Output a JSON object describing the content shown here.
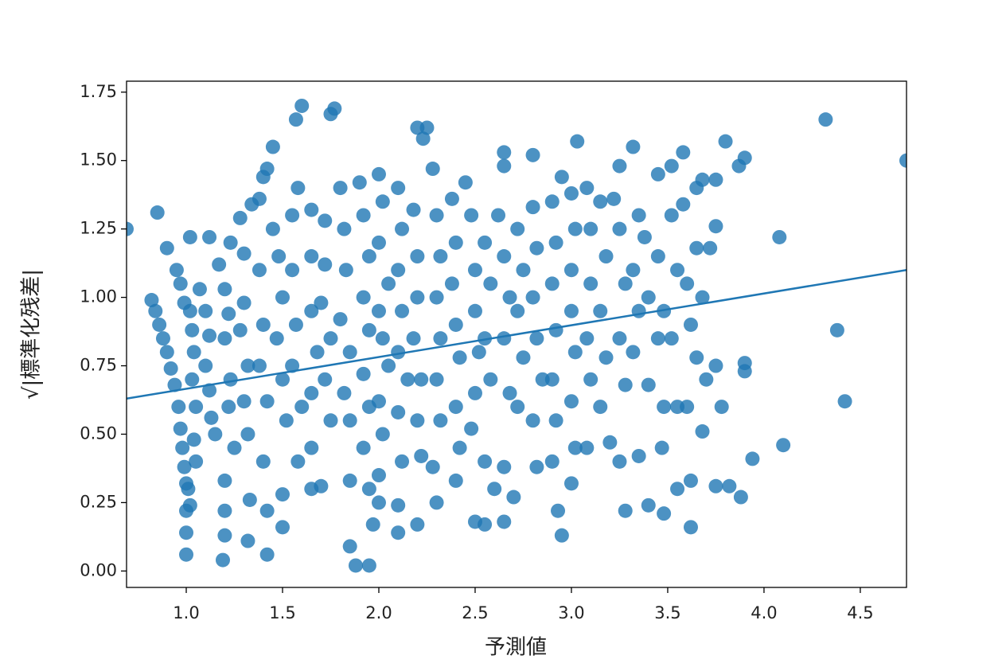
{
  "chart_data": {
    "type": "scatter",
    "xlabel": "予測値",
    "ylabel": "√|標準化残差|",
    "color": "#1f77b4",
    "xlim": [
      0.69,
      4.74
    ],
    "ylim": [
      -0.06,
      1.79
    ],
    "xticks": [
      {
        "value": 1,
        "label": "1.0"
      },
      1.5,
      {
        "value": 2,
        "label": "2.0"
      },
      2.5,
      {
        "value": 3,
        "label": "3.0"
      },
      3.5,
      {
        "value": 4,
        "label": "4.0"
      },
      4.5
    ],
    "yticks": [
      {
        "value": 0,
        "label": "0.00"
      },
      0.25,
      {
        "value": 0.5,
        "label": "0.50"
      },
      0.75,
      {
        "value": 1,
        "label": "1.00"
      },
      1.25,
      {
        "value": 1.5,
        "label": "1.50"
      },
      1.75
    ],
    "x": [
      0.82,
      0.84,
      0.86,
      0.88,
      0.9,
      0.92,
      0.94,
      0.96,
      0.97,
      0.98,
      0.99,
      1.0,
      1.01,
      1.0,
      1.0,
      1.0,
      0.99,
      1.02,
      1.03,
      1.04,
      1.03,
      1.05,
      1.04,
      1.05,
      1.02,
      0.9,
      0.95,
      0.97,
      0.69,
      0.85,
      1.02,
      1.07,
      1.1,
      1.12,
      1.1,
      1.12,
      1.13,
      1.15,
      1.12,
      1.17,
      1.2,
      1.22,
      1.2,
      1.23,
      1.22,
      1.25,
      1.2,
      1.2,
      1.2,
      1.19,
      1.23,
      1.28,
      1.3,
      1.3,
      1.28,
      1.32,
      1.3,
      1.32,
      1.33,
      1.32,
      1.34,
      1.38,
      1.4,
      1.42,
      1.45,
      1.38,
      1.4,
      1.38,
      1.42,
      1.4,
      1.42,
      1.42,
      1.45,
      1.48,
      1.5,
      1.47,
      1.5,
      1.52,
      1.5,
      1.5,
      1.55,
      1.58,
      1.55,
      1.57,
      1.55,
      1.6,
      1.58,
      1.57,
      1.6,
      1.65,
      1.65,
      1.65,
      1.68,
      1.65,
      1.65,
      1.65,
      1.72,
      1.72,
      1.7,
      1.75,
      1.72,
      1.75,
      1.7,
      1.75,
      1.77,
      1.8,
      1.82,
      1.83,
      1.8,
      1.85,
      1.82,
      1.85,
      1.85,
      1.85,
      1.88,
      1.95,
      1.9,
      1.92,
      1.95,
      1.92,
      1.95,
      1.92,
      1.95,
      1.92,
      1.95,
      1.97,
      2.0,
      2.02,
      2.0,
      2.05,
      2.0,
      2.02,
      2.05,
      2.0,
      2.02,
      2.0,
      2.0,
      2.1,
      2.12,
      2.1,
      2.12,
      2.1,
      2.15,
      2.1,
      2.12,
      2.1,
      2.1,
      2.18,
      2.2,
      2.2,
      2.18,
      2.22,
      2.2,
      2.22,
      2.2,
      2.2,
      2.25,
      2.23,
      2.28,
      2.3,
      2.32,
      2.3,
      2.32,
      2.3,
      2.32,
      2.28,
      2.3,
      2.38,
      2.4,
      2.38,
      2.4,
      2.42,
      2.4,
      2.42,
      2.4,
      2.45,
      2.48,
      2.5,
      2.5,
      2.52,
      2.5,
      2.48,
      2.5,
      2.55,
      2.55,
      2.58,
      2.55,
      2.58,
      2.55,
      2.6,
      2.62,
      2.65,
      2.65,
      2.65,
      2.68,
      2.65,
      2.68,
      2.65,
      2.65,
      2.7,
      2.72,
      2.75,
      2.72,
      2.75,
      2.72,
      2.8,
      2.8,
      2.82,
      2.8,
      2.82,
      2.85,
      2.8,
      2.82,
      2.9,
      2.92,
      2.9,
      2.92,
      2.9,
      2.92,
      2.9,
      2.93,
      2.95,
      2.95,
      3.0,
      3.02,
      3.0,
      3.0,
      3.02,
      3.0,
      3.02,
      3.0,
      3.03,
      3.08,
      3.1,
      3.1,
      3.08,
      3.1,
      3.08,
      3.15,
      3.18,
      3.15,
      3.18,
      3.15,
      3.2,
      3.22,
      3.25,
      3.25,
      3.28,
      3.25,
      3.28,
      3.25,
      3.28,
      3.32,
      3.35,
      3.32,
      3.35,
      3.32,
      3.35,
      3.38,
      3.4,
      3.4,
      3.4,
      3.45,
      3.45,
      3.48,
      3.45,
      3.48,
      3.47,
      3.48,
      3.52,
      3.52,
      3.55,
      3.52,
      3.55,
      3.55,
      3.58,
      3.58,
      3.6,
      3.62,
      3.6,
      3.62,
      3.62,
      3.65,
      3.68,
      3.65,
      3.68,
      3.65,
      3.7,
      3.68,
      3.75,
      3.75,
      3.72,
      3.75,
      3.75,
      3.8,
      3.78,
      3.82,
      3.87,
      3.9,
      3.88,
      3.9,
      3.9,
      3.94,
      4.08,
      4.1,
      4.32,
      4.38,
      4.42,
      4.74
    ],
    "y": [
      0.99,
      0.95,
      0.9,
      0.85,
      0.8,
      0.74,
      0.68,
      0.6,
      0.52,
      0.45,
      0.38,
      0.32,
      0.3,
      0.22,
      0.14,
      0.06,
      0.98,
      0.95,
      0.88,
      0.8,
      0.7,
      0.6,
      0.48,
      0.4,
      0.24,
      1.18,
      1.1,
      1.05,
      1.25,
      1.31,
      1.22,
      1.03,
      0.95,
      0.86,
      0.75,
      0.66,
      0.56,
      0.5,
      1.22,
      1.12,
      1.03,
      0.94,
      0.85,
      0.7,
      0.6,
      0.45,
      0.33,
      0.22,
      0.13,
      0.04,
      1.2,
      1.29,
      1.16,
      0.98,
      0.88,
      0.75,
      0.62,
      0.5,
      0.26,
      0.11,
      1.34,
      1.36,
      1.44,
      1.47,
      1.55,
      1.1,
      0.9,
      0.75,
      0.62,
      0.4,
      0.22,
      0.06,
      1.25,
      1.15,
      1.0,
      0.85,
      0.7,
      0.55,
      0.28,
      0.16,
      1.3,
      1.4,
      1.1,
      0.9,
      0.75,
      0.6,
      0.4,
      1.65,
      1.7,
      1.32,
      1.15,
      0.95,
      0.8,
      0.65,
      0.45,
      0.3,
      1.28,
      1.12,
      0.98,
      0.85,
      0.7,
      0.55,
      0.31,
      1.67,
      1.69,
      1.4,
      1.25,
      1.1,
      0.92,
      0.8,
      0.65,
      0.55,
      0.33,
      0.09,
      0.02,
      0.02,
      1.42,
      1.3,
      1.15,
      1.0,
      0.88,
      0.72,
      0.6,
      0.45,
      0.3,
      0.17,
      1.45,
      1.35,
      1.2,
      1.05,
      0.95,
      0.85,
      0.75,
      0.62,
      0.5,
      0.35,
      0.25,
      1.4,
      1.25,
      1.1,
      0.95,
      0.8,
      0.7,
      0.58,
      0.4,
      0.24,
      0.14,
      1.32,
      1.15,
      1.0,
      0.85,
      0.7,
      0.55,
      0.42,
      0.17,
      1.62,
      1.62,
      1.58,
      1.47,
      1.3,
      1.15,
      1.0,
      0.85,
      0.7,
      0.55,
      0.38,
      0.25,
      1.36,
      1.2,
      1.05,
      0.9,
      0.78,
      0.6,
      0.45,
      0.33,
      1.42,
      1.3,
      1.1,
      0.95,
      0.8,
      0.65,
      0.52,
      0.18,
      0.17,
      1.2,
      1.05,
      0.85,
      0.7,
      0.4,
      0.3,
      1.3,
      1.53,
      1.48,
      1.15,
      1.0,
      0.85,
      0.65,
      0.38,
      0.18,
      0.27,
      1.25,
      1.1,
      0.95,
      0.78,
      0.6,
      1.52,
      1.33,
      1.18,
      1.0,
      0.85,
      0.7,
      0.55,
      0.38,
      1.35,
      1.2,
      1.05,
      0.88,
      0.7,
      0.55,
      0.4,
      0.22,
      0.13,
      1.44,
      1.38,
      1.25,
      1.1,
      0.95,
      0.8,
      0.62,
      0.45,
      0.32,
      1.57,
      1.4,
      1.25,
      1.05,
      0.85,
      0.7,
      0.45,
      1.35,
      1.15,
      0.95,
      0.78,
      0.6,
      0.47,
      1.36,
      1.48,
      1.25,
      1.05,
      0.85,
      0.68,
      0.4,
      0.22,
      1.55,
      1.3,
      1.1,
      0.95,
      0.8,
      0.42,
      1.22,
      1.0,
      0.68,
      0.24,
      1.45,
      1.15,
      0.95,
      0.85,
      0.6,
      0.45,
      0.21,
      1.48,
      1.3,
      1.1,
      0.85,
      0.6,
      0.3,
      1.53,
      1.34,
      1.05,
      0.9,
      0.6,
      0.33,
      0.16,
      1.4,
      1.43,
      1.18,
      1.0,
      0.78,
      0.7,
      0.51,
      1.43,
      1.26,
      1.18,
      0.75,
      0.31,
      1.57,
      0.6,
      0.31,
      1.48,
      1.51,
      0.27,
      0.76,
      0.73,
      0.41,
      1.22,
      0.46,
      1.65,
      0.88,
      0.62,
      1.5
    ],
    "fit": {
      "x": [
        0.69,
        4.74
      ],
      "y": [
        0.63,
        1.1
      ]
    }
  }
}
